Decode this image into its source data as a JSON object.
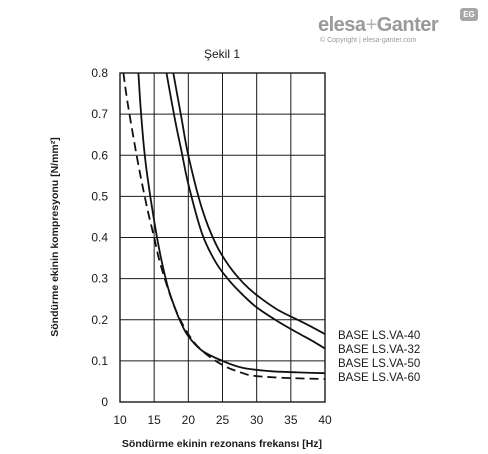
{
  "brand": {
    "name_part1": "elesa",
    "name_plus": "+",
    "name_part2": "Ganter",
    "copyright": "© Copyright | elesa-ganter.com",
    "badge": "EG"
  },
  "chart_data": {
    "type": "line",
    "title": "Şekil 1",
    "xlabel": "Söndürme ekinin rezonans frekansı [Hz]",
    "ylabel": "Söndürme ekinin kompresyonu [N/mm²]",
    "xlim": [
      10,
      40
    ],
    "ylim": [
      0,
      0.8
    ],
    "x_ticks": [
      "10",
      "15",
      "20",
      "25",
      "30",
      "35",
      "40"
    ],
    "y_ticks": [
      "0",
      "0.1",
      "0.2",
      "0.3",
      "0.4",
      "0.5",
      "0.6",
      "0.7",
      "0.8"
    ],
    "grid": true,
    "series": [
      {
        "name": "BASE LS.VA-40",
        "style": "solid",
        "x": [
          17.8,
          19,
          20,
          22,
          24,
          26,
          28,
          30,
          33,
          36,
          38,
          40
        ],
        "y": [
          0.8,
          0.69,
          0.6,
          0.47,
          0.385,
          0.33,
          0.29,
          0.26,
          0.225,
          0.2,
          0.183,
          0.165
        ]
      },
      {
        "name": "BASE LS.VA-32",
        "style": "solid",
        "x": [
          16.8,
          18,
          19,
          20,
          22,
          24,
          26,
          28,
          30,
          33,
          36,
          38,
          40
        ],
        "y": [
          0.8,
          0.69,
          0.61,
          0.53,
          0.41,
          0.34,
          0.295,
          0.26,
          0.23,
          0.197,
          0.168,
          0.15,
          0.13
        ]
      },
      {
        "name": "BASE LS.VA-50",
        "style": "solid",
        "x": [
          12.7,
          13,
          13.5,
          14,
          15,
          16,
          17,
          18,
          19,
          20,
          22,
          25,
          28,
          32,
          36,
          40
        ],
        "y": [
          0.8,
          0.72,
          0.62,
          0.55,
          0.44,
          0.35,
          0.28,
          0.23,
          0.19,
          0.16,
          0.125,
          0.1,
          0.083,
          0.075,
          0.072,
          0.07
        ]
      },
      {
        "name": "BASE LS.VA-60",
        "style": "dashed",
        "x": [
          10.5,
          11,
          12,
          13,
          14,
          15,
          16,
          18,
          20,
          22,
          25,
          28,
          30,
          35,
          40
        ],
        "y": [
          0.8,
          0.74,
          0.64,
          0.55,
          0.47,
          0.4,
          0.33,
          0.23,
          0.165,
          0.125,
          0.09,
          0.07,
          0.063,
          0.058,
          0.056
        ]
      }
    ]
  }
}
